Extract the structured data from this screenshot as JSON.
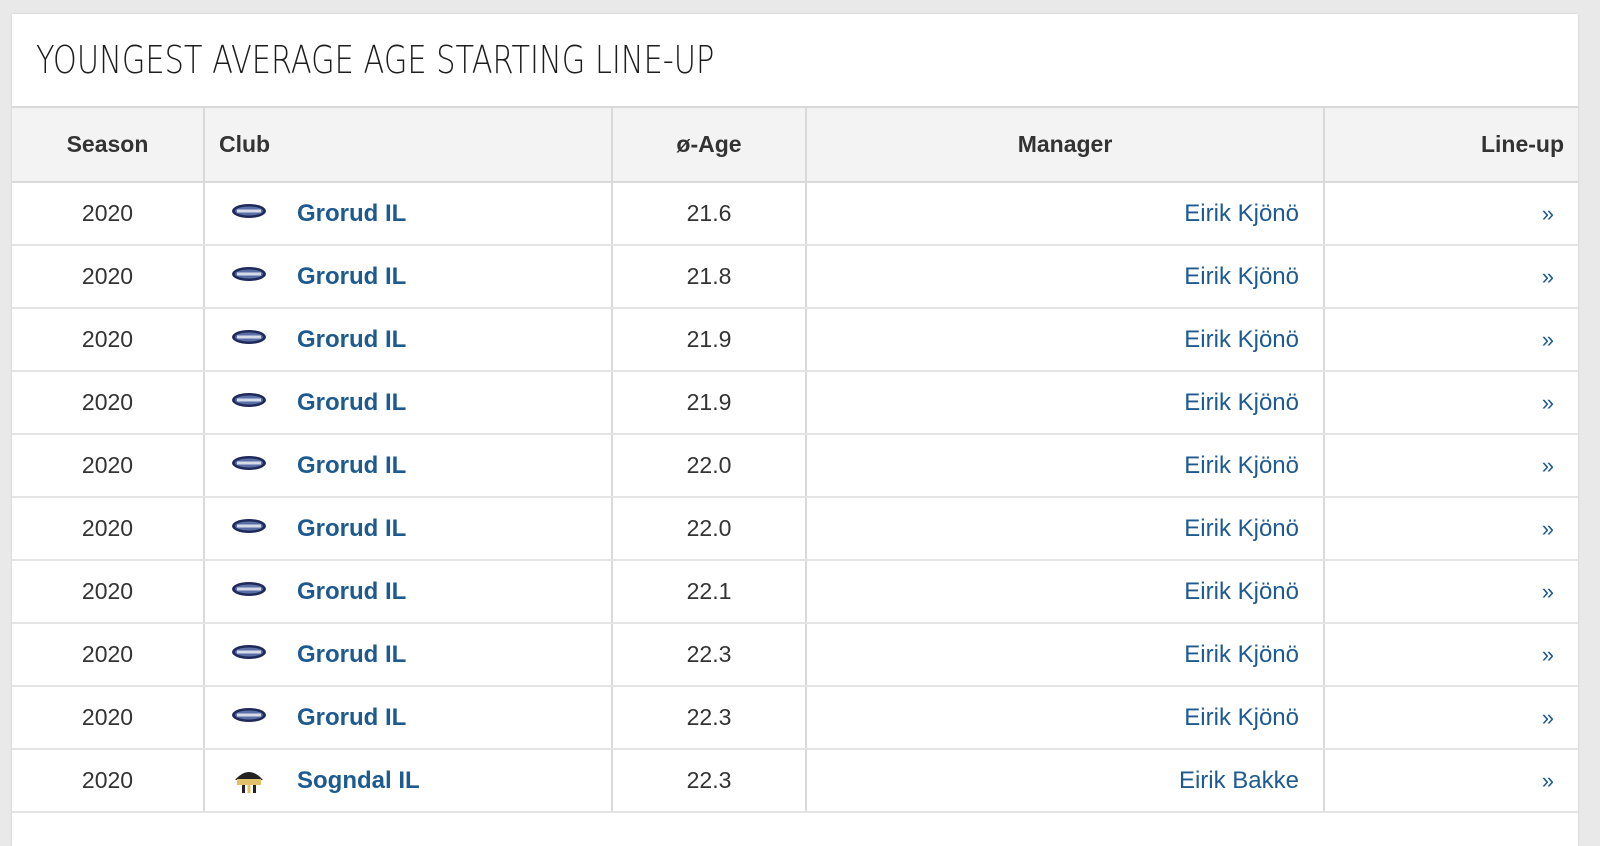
{
  "title": "YOUNGEST AVERAGE AGE STARTING LINE-UP",
  "columns": {
    "season": "Season",
    "club": "Club",
    "age": "ø-Age",
    "manager": "Manager",
    "lineup": "Line-up"
  },
  "rows": [
    {
      "season": "2020",
      "club": "Grorud IL",
      "crest": "grorud-crest-icon",
      "age": "21.6",
      "manager": "Eirik Kjönö",
      "lineup": "»"
    },
    {
      "season": "2020",
      "club": "Grorud IL",
      "crest": "grorud-crest-icon",
      "age": "21.8",
      "manager": "Eirik Kjönö",
      "lineup": "»"
    },
    {
      "season": "2020",
      "club": "Grorud IL",
      "crest": "grorud-crest-icon",
      "age": "21.9",
      "manager": "Eirik Kjönö",
      "lineup": "»"
    },
    {
      "season": "2020",
      "club": "Grorud IL",
      "crest": "grorud-crest-icon",
      "age": "21.9",
      "manager": "Eirik Kjönö",
      "lineup": "»"
    },
    {
      "season": "2020",
      "club": "Grorud IL",
      "crest": "grorud-crest-icon",
      "age": "22.0",
      "manager": "Eirik Kjönö",
      "lineup": "»"
    },
    {
      "season": "2020",
      "club": "Grorud IL",
      "crest": "grorud-crest-icon",
      "age": "22.0",
      "manager": "Eirik Kjönö",
      "lineup": "»"
    },
    {
      "season": "2020",
      "club": "Grorud IL",
      "crest": "grorud-crest-icon",
      "age": "22.1",
      "manager": "Eirik Kjönö",
      "lineup": "»"
    },
    {
      "season": "2020",
      "club": "Grorud IL",
      "crest": "grorud-crest-icon",
      "age": "22.3",
      "manager": "Eirik Kjönö",
      "lineup": "»"
    },
    {
      "season": "2020",
      "club": "Grorud IL",
      "crest": "grorud-crest-icon",
      "age": "22.3",
      "manager": "Eirik Kjönö",
      "lineup": "»"
    },
    {
      "season": "2020",
      "club": "Sogndal IL",
      "crest": "sogndal-crest-icon",
      "age": "22.3",
      "manager": "Eirik Bakke",
      "lineup": "»"
    }
  ],
  "colors": {
    "link": "#1d5a8f",
    "header_bg": "#f3f3f3",
    "page_bg": "#e9e9e9"
  }
}
